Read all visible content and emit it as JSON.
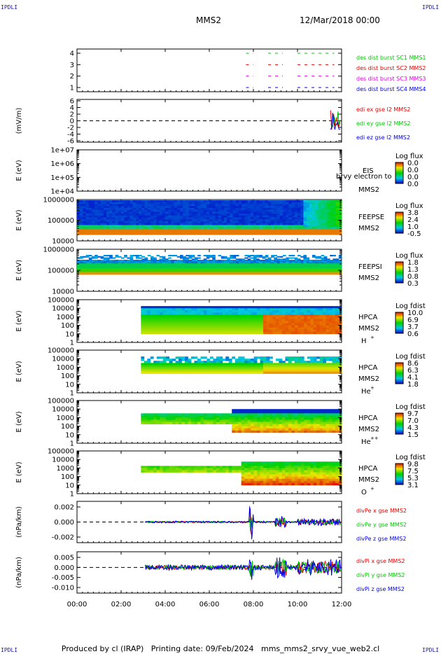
{
  "header": {
    "corner_label": "IPDLI",
    "mission": "MMS2",
    "datetime": "12/Mar/2018 00:00"
  },
  "footer": {
    "produced_by": "Produced by cl (IRAP)",
    "printing_date": "Printing date: 09/Feb/2024",
    "file": "mms_mms2_srvy_vue_web2.cl"
  },
  "chart_data": [
    {
      "panel": "burst-availability",
      "type": "scatter",
      "xlim": [
        "00:00",
        "12:00"
      ],
      "ylim": [
        0.5,
        4.5
      ],
      "yticks": [
        "1",
        "2",
        "3",
        "4"
      ],
      "series": [
        {
          "name": "des dist burst SC1 MMS1",
          "color": "#00c800",
          "y": 4,
          "segments": [
            [
              "07:40",
              "08:00"
            ],
            [
              "08:40",
              "09:20"
            ],
            [
              "10:00",
              "11:40"
            ]
          ]
        },
        {
          "name": "des dist burst SC2 MMS2",
          "color": "#e60000",
          "y": 3,
          "segments": [
            [
              "07:40",
              "08:00"
            ],
            [
              "08:40",
              "09:20"
            ],
            [
              "10:00",
              "11:40"
            ]
          ]
        },
        {
          "name": "des dist burst SC3 MMS3",
          "color": "#e600e6",
          "y": 2,
          "segments": [
            [
              "07:40",
              "08:00"
            ],
            [
              "08:40",
              "09:20"
            ],
            [
              "10:00",
              "11:40"
            ]
          ]
        },
        {
          "name": "des dist burst SC4 MMS4",
          "color": "#0000e6",
          "y": 1,
          "segments": [
            [
              "07:40",
              "08:00"
            ],
            [
              "08:40",
              "09:20"
            ],
            [
              "10:00",
              "11:40"
            ]
          ]
        }
      ]
    },
    {
      "panel": "edi-efield",
      "type": "line",
      "ylabel": "(mV/m)",
      "xlim": [
        "00:00",
        "12:00"
      ],
      "ylim": [
        -6,
        6
      ],
      "yticks": [
        "6",
        "4",
        "2",
        "0",
        "-2",
        "-4",
        "-6"
      ],
      "series": [
        {
          "name": "edi ex gse l2 MMS2",
          "color": "#e60000"
        },
        {
          "name": "edi ey gse l2 MMS2",
          "color": "#00c800"
        },
        {
          "name": "edi ez gse l2 MMS2",
          "color": "#0000e6"
        }
      ],
      "activity": [
        "11:30",
        "12:00"
      ]
    },
    {
      "panel": "eis",
      "type": "heatmap",
      "ylabel": "E (eV)",
      "scale": "log",
      "yticks": [
        "1e+07",
        "1e+06",
        "1e+05",
        "1e+04"
      ],
      "instrument": "EIS",
      "probe": "MMS2",
      "overlay_label": "brvy electron to",
      "colorbar": {
        "title": "Log flux",
        "labels": [
          "0.0",
          "0.0",
          "0.0",
          "0.0"
        ]
      }
    },
    {
      "panel": "feeps-electrons",
      "type": "heatmap",
      "ylabel": "E (eV)",
      "scale": "log",
      "yticks": [
        "1000000",
        "100000",
        "10000"
      ],
      "instrument": "FEEPSE",
      "probe": "MMS2",
      "colorbar": {
        "title": "Log flux",
        "labels": [
          "3.8",
          "2.4",
          "1.0",
          "-0.5"
        ]
      }
    },
    {
      "panel": "feeps-ions",
      "type": "heatmap",
      "ylabel": "E (eV)",
      "scale": "log",
      "yticks": [
        "1000000",
        "100000",
        "10000"
      ],
      "instrument": "FEEPSI",
      "probe": "MMS2",
      "colorbar": {
        "title": "Log flux",
        "labels": [
          "1.8",
          "1.3",
          "0.8",
          "0.3"
        ]
      }
    },
    {
      "panel": "hpca-h",
      "type": "heatmap",
      "ylabel": "E (eV)",
      "scale": "log",
      "yticks": [
        "100000",
        "10000",
        "1000",
        "100",
        "10",
        "1"
      ],
      "instrument": "HPCA",
      "probe": "MMS2",
      "species": "H",
      "charge": "+",
      "colorbar": {
        "title": "Log fdist",
        "labels": [
          "10.0",
          "6.9",
          "3.7",
          "0.6"
        ]
      }
    },
    {
      "panel": "hpca-he",
      "type": "heatmap",
      "ylabel": "E (eV)",
      "scale": "log",
      "yticks": [
        "100000",
        "10000",
        "1000",
        "100",
        "10",
        "1"
      ],
      "instrument": "HPCA",
      "probe": "MMS2",
      "species": "He",
      "charge": "+",
      "colorbar": {
        "title": "Log fdist",
        "labels": [
          "8.6",
          "6.3",
          "4.1",
          "1.8"
        ]
      }
    },
    {
      "panel": "hpca-he2",
      "type": "heatmap",
      "ylabel": "E (eV)",
      "scale": "log",
      "yticks": [
        "100000",
        "10000",
        "1000",
        "100",
        "10",
        "1"
      ],
      "instrument": "HPCA",
      "probe": "MMS2",
      "species": "He",
      "charge": "++",
      "colorbar": {
        "title": "Log fdist",
        "labels": [
          "9.7",
          "7.0",
          "4.3",
          "1.5"
        ]
      }
    },
    {
      "panel": "hpca-o",
      "type": "heatmap",
      "ylabel": "E (eV)",
      "scale": "log",
      "yticks": [
        "100000",
        "10000",
        "1000",
        "100",
        "10",
        "1"
      ],
      "instrument": "HPCA",
      "probe": "MMS2",
      "species": "O",
      "charge": "+",
      "colorbar": {
        "title": "Log fdist",
        "labels": [
          "9.8",
          "7.5",
          "5.3",
          "3.1"
        ]
      }
    },
    {
      "panel": "div-pe",
      "type": "line",
      "ylabel": "(nPa/km)",
      "xlim": [
        "00:00",
        "12:00"
      ],
      "ylim": [
        -0.003,
        0.003
      ],
      "yticks": [
        "0.002",
        "0.000",
        "-0.002"
      ],
      "series": [
        {
          "name": "divPe x gse MMS2",
          "color": "#e60000"
        },
        {
          "name": "divPe y gse MMS2",
          "color": "#00c800"
        },
        {
          "name": "divPe z gse MMS2",
          "color": "#0000e6"
        }
      ]
    },
    {
      "panel": "div-pi",
      "type": "line",
      "ylabel": "(nPa/km)",
      "xlim": [
        "00:00",
        "12:00"
      ],
      "ylim": [
        -0.012,
        0.008
      ],
      "yticks": [
        "0.005",
        "0.000",
        "-0.005",
        "-0.010"
      ],
      "series": [
        {
          "name": "divPi x gse MMS2",
          "color": "#e60000"
        },
        {
          "name": "divPi y gse MMS2",
          "color": "#00c800"
        },
        {
          "name": "divPi z gse MMS2",
          "color": "#0000e6"
        }
      ]
    }
  ],
  "xaxis": {
    "ticks": [
      "00:00",
      "02:00",
      "04:00",
      "06:00",
      "08:00",
      "10:00",
      "12:00"
    ]
  }
}
